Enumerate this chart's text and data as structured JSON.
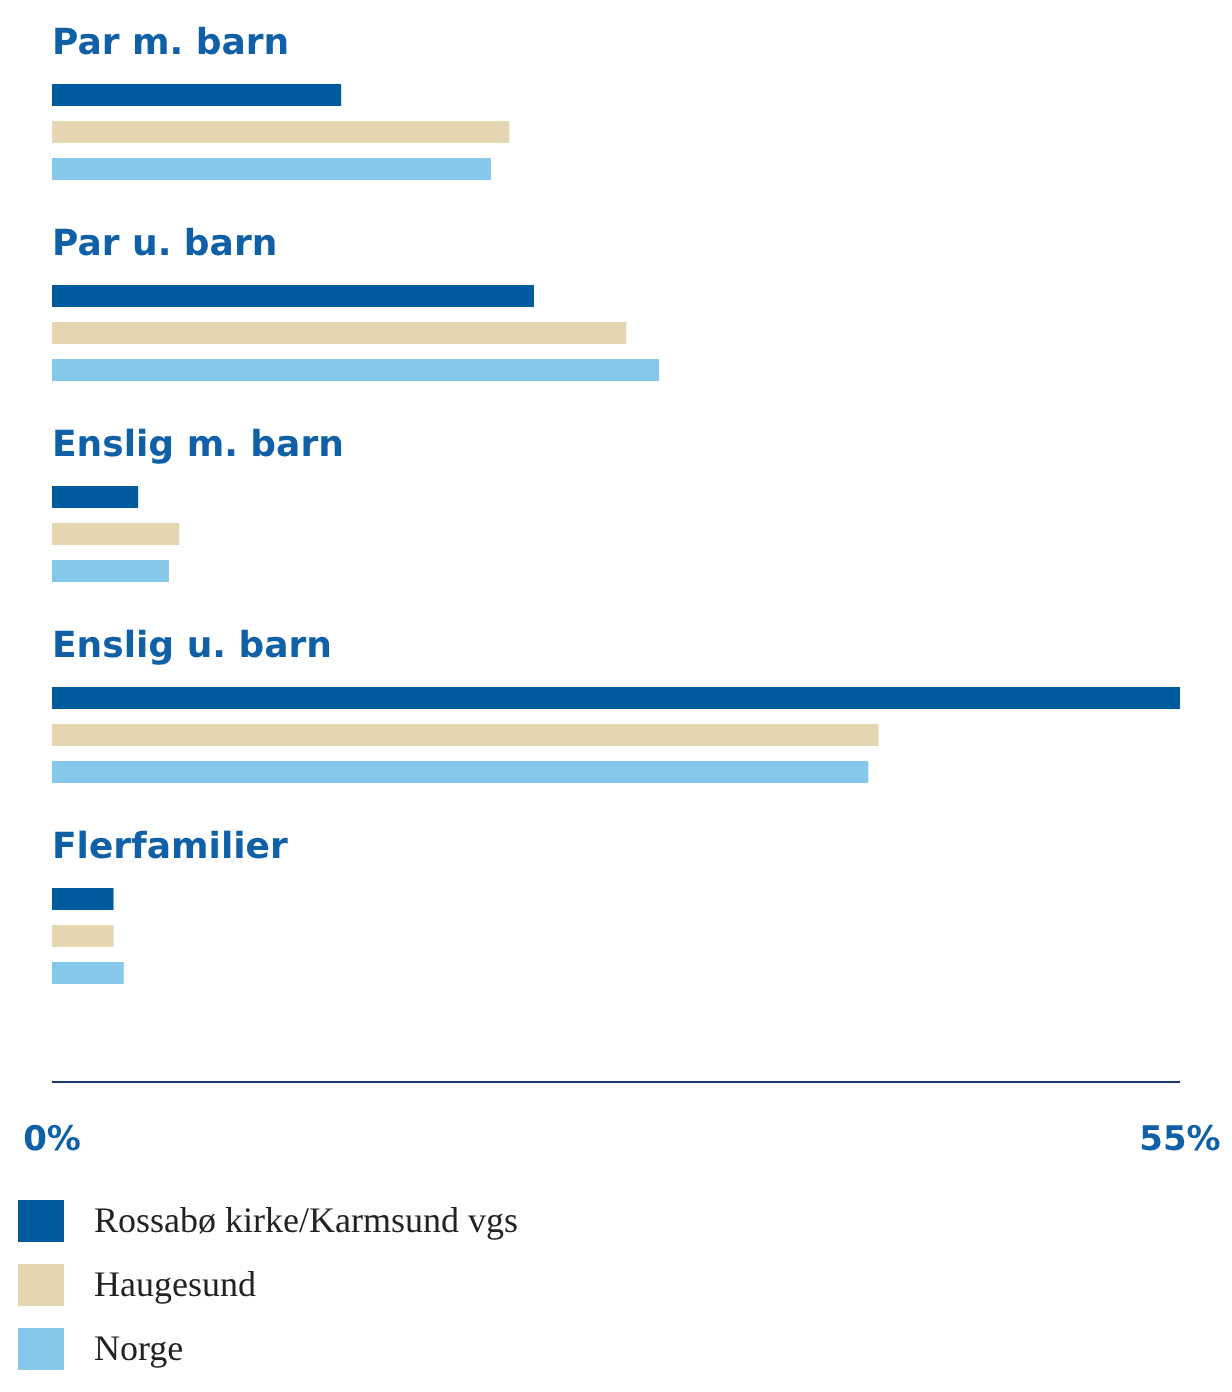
{
  "chart_data": {
    "type": "bar",
    "orientation": "horizontal",
    "categories": [
      "Par m. barn",
      "Par u. barn",
      "Enslig m. barn",
      "Enslig u. barn",
      "Flerfamilier"
    ],
    "series": [
      {
        "name": "Rossabø kirke/Karmsund vgs",
        "color": "#005a9e",
        "values": [
          14.1,
          23.5,
          4.2,
          55,
          3.0
        ]
      },
      {
        "name": "Haugesund",
        "color": "#e3d6b0",
        "values": [
          22.3,
          28.0,
          6.2,
          40.3,
          3.0
        ]
      },
      {
        "name": "Norge",
        "color": "#86c8e9",
        "values": [
          21.4,
          29.6,
          5.7,
          39.8,
          3.5
        ]
      }
    ],
    "xlim": [
      0,
      55
    ],
    "xticks": [
      {
        "value": 0,
        "label": "0%"
      },
      {
        "value": 55,
        "label": "55%"
      }
    ],
    "grid": false,
    "legend": "bottom"
  }
}
